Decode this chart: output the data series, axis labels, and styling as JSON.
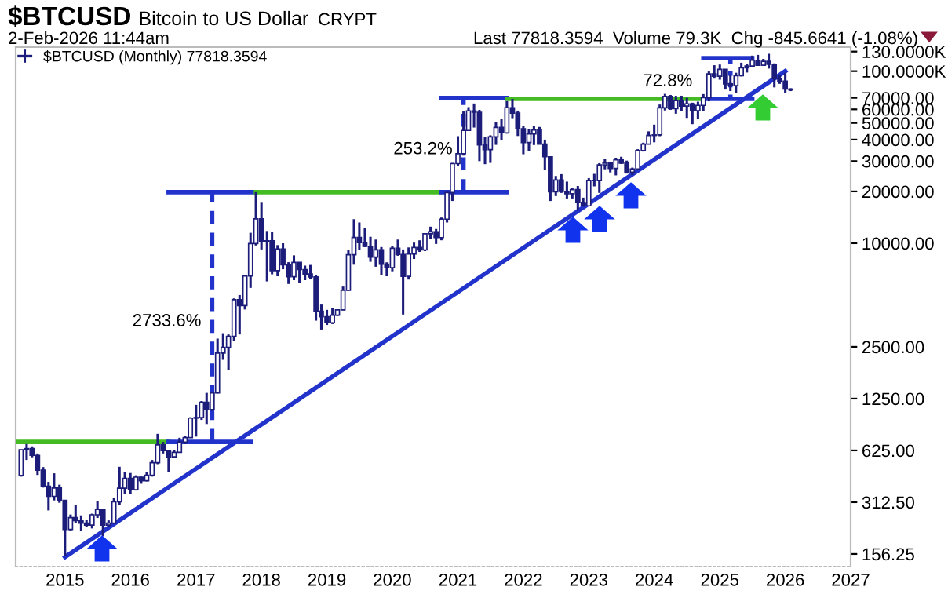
{
  "chart_data": {
    "type": "candlestick",
    "title": "$BTCUSD",
    "subtitle": "Bitcoin to US Dollar",
    "annotations": [
      "CRYPT",
      "2-Feb-2026 11:44am",
      "Last 77818.3594  Volume 79.3K  Chg -845.6641 (-1.08%)",
      {
        "text": "2733.6%",
        "x": "2017-04",
        "y": 3500
      },
      {
        "text": "253.2%",
        "x": "2021-02",
        "y": 35000
      },
      {
        "text": "72.8%",
        "x": "2024-10",
        "y": 87000
      }
    ],
    "log": "y",
    "grid": false,
    "legend": "top left",
    "xlim": [
      "2014-04",
      "2027-01"
    ],
    "xticks": [
      "2015",
      "2016",
      "2017",
      "2018",
      "2019",
      "2020",
      "2021",
      "2022",
      "2023",
      "2024",
      "2025",
      "2026",
      "2027"
    ],
    "ylim": [
      132,
      138000
    ],
    "yticks": [
      {
        "value": 156.25,
        "label": "156.25"
      },
      {
        "value": 312.5,
        "label": "312.50"
      },
      {
        "value": 625,
        "label": "625.00"
      },
      {
        "value": 1250,
        "label": "1250.00"
      },
      {
        "value": 2500,
        "label": "2500.00"
      },
      {
        "value": 10000,
        "label": "10000.00"
      },
      {
        "value": 20000,
        "label": "20000.00"
      },
      {
        "value": 30000,
        "label": "30000.00"
      },
      {
        "value": 40000,
        "label": "40000.00"
      },
      {
        "value": 50000,
        "label": "50000.00"
      },
      {
        "value": 60000,
        "label": "60000.00"
      },
      {
        "value": 70000,
        "label": "70000.00"
      },
      {
        "value": 100000,
        "label": "100.0000K"
      },
      {
        "value": 130000,
        "label": "130.0000K"
      }
    ],
    "series": [
      {
        "name": "$BTCUSD (Monthly) 77818.3594",
        "color": "#1c1c7a",
        "x": [
          "2014-05",
          "2014-06",
          "2014-07",
          "2014-08",
          "2014-09",
          "2014-10",
          "2014-11",
          "2014-12",
          "2015-01",
          "2015-02",
          "2015-03",
          "2015-04",
          "2015-05",
          "2015-06",
          "2015-07",
          "2015-08",
          "2015-09",
          "2015-10",
          "2015-11",
          "2015-12",
          "2016-01",
          "2016-02",
          "2016-03",
          "2016-04",
          "2016-05",
          "2016-06",
          "2016-07",
          "2016-08",
          "2016-09",
          "2016-10",
          "2016-11",
          "2016-12",
          "2017-01",
          "2017-02",
          "2017-03",
          "2017-04",
          "2017-05",
          "2017-06",
          "2017-07",
          "2017-08",
          "2017-09",
          "2017-10",
          "2017-11",
          "2017-12",
          "2018-01",
          "2018-02",
          "2018-03",
          "2018-04",
          "2018-05",
          "2018-06",
          "2018-07",
          "2018-08",
          "2018-09",
          "2018-10",
          "2018-11",
          "2018-12",
          "2019-01",
          "2019-02",
          "2019-03",
          "2019-04",
          "2019-05",
          "2019-06",
          "2019-07",
          "2019-08",
          "2019-09",
          "2019-10",
          "2019-11",
          "2019-12",
          "2020-01",
          "2020-02",
          "2020-03",
          "2020-04",
          "2020-05",
          "2020-06",
          "2020-07",
          "2020-08",
          "2020-09",
          "2020-10",
          "2020-11",
          "2020-12",
          "2021-01",
          "2021-02",
          "2021-03",
          "2021-04",
          "2021-05",
          "2021-06",
          "2021-07",
          "2021-08",
          "2021-09",
          "2021-10",
          "2021-11",
          "2021-12",
          "2022-01",
          "2022-02",
          "2022-03",
          "2022-04",
          "2022-05",
          "2022-06",
          "2022-07",
          "2022-08",
          "2022-09",
          "2022-10",
          "2022-11",
          "2022-12",
          "2023-01",
          "2023-02",
          "2023-03",
          "2023-04",
          "2023-05",
          "2023-06",
          "2023-07",
          "2023-08",
          "2023-09",
          "2023-10",
          "2023-11",
          "2023-12",
          "2024-01",
          "2024-02",
          "2024-03",
          "2024-04",
          "2024-05",
          "2024-06",
          "2024-07",
          "2024-08",
          "2024-09",
          "2024-10",
          "2024-11",
          "2024-12",
          "2025-01",
          "2025-02",
          "2025-03",
          "2025-04",
          "2025-05",
          "2025-06",
          "2025-07",
          "2025-08",
          "2025-09",
          "2025-10",
          "2025-11",
          "2025-12",
          "2026-01",
          "2026-02"
        ],
        "ohlc": [
          [
            447,
            630,
            440,
            630
          ],
          [
            630,
            680,
            550,
            640
          ],
          [
            640,
            660,
            570,
            585
          ],
          [
            585,
            600,
            450,
            480
          ],
          [
            480,
            500,
            380,
            387
          ],
          [
            387,
            410,
            280,
            338
          ],
          [
            338,
            460,
            320,
            378
          ],
          [
            378,
            395,
            310,
            320
          ],
          [
            320,
            320,
            152,
            217
          ],
          [
            217,
            265,
            212,
            254
          ],
          [
            254,
            300,
            236,
            244
          ],
          [
            244,
            262,
            214,
            236
          ],
          [
            236,
            247,
            225,
            230
          ],
          [
            230,
            268,
            220,
            264
          ],
          [
            264,
            317,
            253,
            284
          ],
          [
            284,
            286,
            198,
            230
          ],
          [
            230,
            245,
            225,
            236
          ],
          [
            236,
            330,
            235,
            314
          ],
          [
            314,
            502,
            300,
            377
          ],
          [
            377,
            469,
            350,
            430
          ],
          [
            430,
            462,
            350,
            369
          ],
          [
            369,
            448,
            365,
            437
          ],
          [
            437,
            440,
            400,
            416
          ],
          [
            416,
            467,
            413,
            448
          ],
          [
            448,
            550,
            440,
            530
          ],
          [
            530,
            780,
            520,
            673
          ],
          [
            673,
            700,
            600,
            624
          ],
          [
            624,
            630,
            470,
            573
          ],
          [
            573,
            630,
            570,
            609
          ],
          [
            609,
            740,
            606,
            698
          ],
          [
            698,
            757,
            680,
            742
          ],
          [
            742,
            975,
            740,
            963
          ],
          [
            963,
            1150,
            752,
            970
          ],
          [
            970,
            1210,
            940,
            1190
          ],
          [
            1190,
            1350,
            890,
            1080
          ],
          [
            1080,
            1350,
            1060,
            1348
          ],
          [
            1348,
            2790,
            1340,
            2300
          ],
          [
            2300,
            3000,
            2100,
            2480
          ],
          [
            2480,
            2950,
            1840,
            2875
          ],
          [
            2875,
            4780,
            2700,
            4700
          ],
          [
            4700,
            5000,
            2950,
            4340
          ],
          [
            4340,
            6470,
            4120,
            6450
          ],
          [
            6450,
            11500,
            5500,
            9950
          ],
          [
            9950,
            19800,
            9700,
            13860
          ],
          [
            13860,
            17200,
            9200,
            10280
          ],
          [
            10280,
            11780,
            6000,
            10330
          ],
          [
            10330,
            11700,
            6600,
            6930
          ],
          [
            6930,
            9750,
            6430,
            9240
          ],
          [
            9240,
            9990,
            7060,
            7490
          ],
          [
            7490,
            7760,
            5800,
            6390
          ],
          [
            6390,
            8500,
            6100,
            7730
          ],
          [
            7730,
            7760,
            5880,
            7030
          ],
          [
            7030,
            7410,
            6100,
            6630
          ],
          [
            6630,
            7480,
            6200,
            6370
          ],
          [
            6370,
            6560,
            3550,
            4020
          ],
          [
            4020,
            4400,
            3150,
            3740
          ],
          [
            3740,
            4100,
            3350,
            3450
          ],
          [
            3450,
            4200,
            3390,
            3820
          ],
          [
            3820,
            4100,
            3780,
            4100
          ],
          [
            4100,
            5600,
            4080,
            5320
          ],
          [
            5320,
            9100,
            5300,
            8570
          ],
          [
            8570,
            13800,
            7500,
            10800
          ],
          [
            10800,
            13200,
            9100,
            10080
          ],
          [
            10080,
            12300,
            9500,
            9600
          ],
          [
            9600,
            10900,
            7800,
            8300
          ],
          [
            8300,
            10500,
            7300,
            9150
          ],
          [
            9150,
            9500,
            6550,
            7550
          ],
          [
            7550,
            7750,
            6430,
            7200
          ],
          [
            7200,
            9600,
            6870,
            9350
          ],
          [
            9350,
            10500,
            8450,
            8600
          ],
          [
            8600,
            9200,
            3850,
            6420
          ],
          [
            6420,
            9450,
            6150,
            8650
          ],
          [
            8650,
            10080,
            8100,
            9450
          ],
          [
            9450,
            10400,
            8900,
            9140
          ],
          [
            9140,
            11450,
            9000,
            11350
          ],
          [
            11350,
            12480,
            10550,
            11650
          ],
          [
            11650,
            12100,
            9900,
            10780
          ],
          [
            10780,
            14100,
            10400,
            13800
          ],
          [
            13800,
            19850,
            13200,
            19700
          ],
          [
            19700,
            29300,
            17600,
            29000
          ],
          [
            29000,
            41900,
            28100,
            33100
          ],
          [
            33100,
            58300,
            32300,
            45200
          ],
          [
            45200,
            61800,
            45000,
            58800
          ],
          [
            58800,
            64900,
            47000,
            57700
          ],
          [
            57700,
            59600,
            30000,
            37300
          ],
          [
            37300,
            41300,
            28800,
            35000
          ],
          [
            35000,
            42400,
            29300,
            41500
          ],
          [
            41500,
            50500,
            37300,
            47100
          ],
          [
            47100,
            52900,
            39600,
            43800
          ],
          [
            43800,
            67000,
            43300,
            61300
          ],
          [
            61300,
            69000,
            53300,
            57000
          ],
          [
            57000,
            59000,
            42000,
            46300
          ],
          [
            46300,
            48000,
            32900,
            38500
          ],
          [
            38500,
            45800,
            34300,
            43200
          ],
          [
            43200,
            48200,
            37200,
            45500
          ],
          [
            45500,
            47400,
            37600,
            37700
          ],
          [
            37700,
            40000,
            26700,
            31800
          ],
          [
            31800,
            31900,
            17600,
            19900
          ],
          [
            19900,
            24600,
            18800,
            23300
          ],
          [
            23300,
            25200,
            19600,
            20000
          ],
          [
            20000,
            22800,
            18200,
            19400
          ],
          [
            19400,
            21000,
            18200,
            20500
          ],
          [
            20500,
            21500,
            15500,
            17200
          ],
          [
            17200,
            18400,
            16300,
            16500
          ],
          [
            16500,
            23900,
            16500,
            23100
          ],
          [
            23100,
            25300,
            21400,
            23100
          ],
          [
            23100,
            29200,
            19600,
            28500
          ],
          [
            28500,
            31000,
            26900,
            29200
          ],
          [
            29200,
            29800,
            25800,
            27200
          ],
          [
            27200,
            31400,
            24800,
            30500
          ],
          [
            30500,
            31800,
            28900,
            29200
          ],
          [
            29200,
            30200,
            25400,
            25900
          ],
          [
            25900,
            27500,
            24900,
            27000
          ],
          [
            27000,
            35200,
            26600,
            34600
          ],
          [
            34600,
            38400,
            34100,
            37700
          ],
          [
            37700,
            44700,
            37600,
            42300
          ],
          [
            42300,
            48900,
            38600,
            42600
          ],
          [
            42600,
            64000,
            41900,
            61200
          ],
          [
            61200,
            73800,
            59100,
            71300
          ],
          [
            71300,
            72700,
            59600,
            60600
          ],
          [
            60600,
            71900,
            56600,
            67500
          ],
          [
            67500,
            72000,
            58500,
            62700
          ],
          [
            62700,
            70000,
            53500,
            64600
          ],
          [
            64600,
            65600,
            49200,
            58900
          ],
          [
            58900,
            66500,
            52600,
            63300
          ],
          [
            63300,
            73600,
            58900,
            70200
          ],
          [
            70200,
            99600,
            66800,
            96400
          ],
          [
            96400,
            108300,
            90500,
            93400
          ],
          [
            93400,
            109300,
            89200,
            102400
          ],
          [
            102400,
            102500,
            78200,
            84300
          ],
          [
            84300,
            95000,
            76600,
            82500
          ],
          [
            82500,
            97900,
            74400,
            94200
          ],
          [
            94200,
            112000,
            93300,
            104600
          ],
          [
            104600,
            110600,
            98200,
            107100
          ],
          [
            107100,
            123200,
            105100,
            115700
          ],
          [
            115700,
            124400,
            107300,
            108200
          ],
          [
            108200,
            117900,
            107300,
            114000
          ],
          [
            114000,
            126200,
            103500,
            109600
          ],
          [
            109600,
            111000,
            80500,
            90400
          ],
          [
            90400,
            94600,
            84400,
            87500
          ],
          [
            87500,
            97900,
            74500,
            78660
          ],
          [
            78660,
            79500,
            76600,
            77818
          ]
        ]
      },
      {
        "type": "line",
        "color": "#2233cc",
        "x": [
          "2015-01",
          "2026-01"
        ],
        "values": [
          150,
          100000
        ]
      },
      {
        "type": "line",
        "color": "#44bb22",
        "x": [
          "2014-04",
          "2016-08"
        ],
        "values": [
          700,
          700
        ]
      },
      {
        "type": "line",
        "color": "#2233cc",
        "x": [
          "2016-08",
          "2017-11"
        ],
        "values": [
          700,
          700
        ]
      },
      {
        "type": "line",
        "color": "#2233cc",
        "x": [
          "2016-08",
          "2017-12"
        ],
        "values": [
          19800,
          19800
        ]
      },
      {
        "type": "line",
        "color": "#2233cc",
        "line_style": "dashed",
        "x": [
          "2017-04",
          "2017-04"
        ],
        "values": [
          700,
          19800
        ]
      },
      {
        "type": "line",
        "color": "#44bb22",
        "x": [
          "2017-12",
          "2020-10"
        ],
        "values": [
          19800,
          19800
        ]
      },
      {
        "type": "line",
        "color": "#2233cc",
        "x": [
          "2020-10",
          "2021-10"
        ],
        "values": [
          19800,
          19800
        ]
      },
      {
        "type": "line",
        "color": "#2233cc",
        "x": [
          "2020-10",
          "2021-10"
        ],
        "values": [
          69900,
          69900
        ]
      },
      {
        "type": "line",
        "color": "#2233cc",
        "line_style": "dashed",
        "x": [
          "2021-02",
          "2021-02"
        ],
        "values": [
          19800,
          69900
        ]
      },
      {
        "type": "line",
        "color": "#44bb22",
        "x": [
          "2021-10",
          "2024-10"
        ],
        "values": [
          69000,
          69000
        ]
      },
      {
        "type": "line",
        "color": "#2233cc",
        "x": [
          "2024-10",
          "2025-07"
        ],
        "values": [
          69000,
          69000
        ]
      },
      {
        "type": "line",
        "color": "#2233cc",
        "x": [
          "2024-10",
          "2025-07"
        ],
        "values": [
          119200,
          119200
        ]
      },
      {
        "type": "line",
        "color": "#2233cc",
        "line_style": "dotted",
        "x": [
          "2025-03",
          "2025-03"
        ],
        "values": [
          69000,
          119200
        ]
      }
    ]
  }
}
